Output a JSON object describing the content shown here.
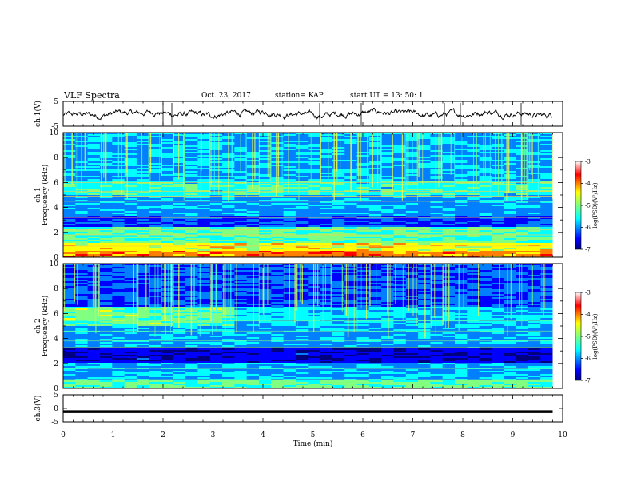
{
  "header": {
    "title": "VLF Spectra",
    "date": "Oct. 23, 2017",
    "station": "station= KAP",
    "start": "start  UT  =   13: 50: 1"
  },
  "chart_data": [
    {
      "type": "line",
      "panel": "ch1",
      "ylabel": "ch.1(V)",
      "ylim": [
        -5,
        5
      ],
      "yticks": [
        "5",
        "-5"
      ],
      "xlim": [
        0,
        10
      ],
      "description_values": "noisy waveform fluctuating between about -1.5 and 1.5 V",
      "x_end": 9.8
    },
    {
      "type": "heatmap",
      "panel": "ch1-spectrogram",
      "ylabel": "ch.1\nFrequency  (kHz)",
      "ylim": [
        0,
        10
      ],
      "yticks": [
        "0",
        "2",
        "4",
        "6",
        "8",
        "10"
      ],
      "xlim": [
        0,
        10
      ],
      "x_end": 9.8,
      "colorbar": {
        "label": "log(PSD)(V²/Hz)",
        "range": [
          -7,
          -3
        ],
        "ticks": [
          "-3",
          "-4",
          "-5",
          "-6",
          "-7"
        ]
      },
      "features": "intense broadband band at 0-1 kHz, horizontal bands around 1.8, 3.2, 4.5, 5.3 kHz, vertical impulsive spikes (sferics) above 5 kHz"
    },
    {
      "type": "heatmap",
      "panel": "ch2-spectrogram",
      "ylabel": "ch.2\nFrequency  (kHz)",
      "ylim": [
        0,
        10
      ],
      "yticks": [
        "0",
        "2",
        "4",
        "6",
        "8",
        "10"
      ],
      "xlim": [
        0,
        10
      ],
      "x_end": 9.8,
      "colorbar": {
        "label": "log(PSD)(V²/Hz)",
        "range": [
          -7,
          -3
        ],
        "ticks": [
          "-3",
          "-4",
          "-5",
          "-6",
          "-7"
        ]
      },
      "features": "weaker than ch.1, band near 5.5 kHz until about 3.4 min, dark band around 2.5-3 kHz, vertical sferic spikes"
    },
    {
      "type": "line",
      "panel": "ch3",
      "ylabel": "ch.3(V)",
      "ylim": [
        -5,
        5
      ],
      "yticks": [
        "5",
        "0",
        "-5"
      ],
      "xlim": [
        0,
        10
      ],
      "x_end": 9.8,
      "values_const": -1.2,
      "xlabel": "Time  (min)",
      "xticks": [
        "0",
        "1",
        "2",
        "3",
        "4",
        "5",
        "6",
        "7",
        "8",
        "9",
        "10"
      ]
    }
  ],
  "colors": {
    "colormap": [
      "#00007f",
      "#0000ff",
      "#0080ff",
      "#00ffff",
      "#80ff80",
      "#ffff00",
      "#ff8000",
      "#ff0000",
      "#800000"
    ],
    "trace": "#000000"
  }
}
